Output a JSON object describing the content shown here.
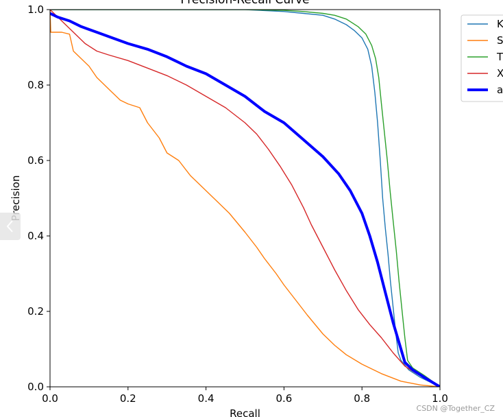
{
  "chart_data": {
    "type": "line",
    "title": "Precision-Recall Curve",
    "xlabel": "Recall",
    "ylabel": "Precision",
    "xlim": [
      0.0,
      1.0
    ],
    "ylim": [
      0.0,
      1.0
    ],
    "x_ticks": [
      "0.0",
      "0.2",
      "0.4",
      "0.6",
      "0.8",
      "1.0"
    ],
    "y_ticks": [
      "0.0",
      "0.2",
      "0.4",
      "0.6",
      "0.8",
      "1.0"
    ],
    "grid": false,
    "legend_position": "outside-top-right",
    "series": [
      {
        "name": "K",
        "color": "#1f77b4",
        "width": 1.4,
        "points": [
          [
            0.0,
            1.0
          ],
          [
            0.1,
            1.0
          ],
          [
            0.2,
            1.0
          ],
          [
            0.3,
            1.0
          ],
          [
            0.4,
            1.0
          ],
          [
            0.5,
            1.0
          ],
          [
            0.6,
            0.995
          ],
          [
            0.65,
            0.99
          ],
          [
            0.7,
            0.985
          ],
          [
            0.73,
            0.975
          ],
          [
            0.76,
            0.96
          ],
          [
            0.78,
            0.945
          ],
          [
            0.8,
            0.925
          ],
          [
            0.815,
            0.895
          ],
          [
            0.825,
            0.85
          ],
          [
            0.833,
            0.78
          ],
          [
            0.84,
            0.7
          ],
          [
            0.847,
            0.6
          ],
          [
            0.853,
            0.5
          ],
          [
            0.86,
            0.42
          ],
          [
            0.867,
            0.35
          ],
          [
            0.873,
            0.28
          ],
          [
            0.88,
            0.21
          ],
          [
            0.887,
            0.14
          ],
          [
            0.893,
            0.09
          ],
          [
            0.9,
            0.07
          ],
          [
            0.92,
            0.045
          ],
          [
            0.95,
            0.025
          ],
          [
            1.0,
            0.0
          ]
        ]
      },
      {
        "name": "S",
        "color": "#ff7f0e",
        "width": 1.4,
        "points": [
          [
            0.0,
            1.0
          ],
          [
            0.002,
            0.94
          ],
          [
            0.03,
            0.94
          ],
          [
            0.05,
            0.935
          ],
          [
            0.06,
            0.89
          ],
          [
            0.08,
            0.87
          ],
          [
            0.1,
            0.85
          ],
          [
            0.12,
            0.82
          ],
          [
            0.15,
            0.79
          ],
          [
            0.18,
            0.76
          ],
          [
            0.2,
            0.75
          ],
          [
            0.23,
            0.74
          ],
          [
            0.25,
            0.7
          ],
          [
            0.28,
            0.66
          ],
          [
            0.3,
            0.62
          ],
          [
            0.33,
            0.6
          ],
          [
            0.36,
            0.56
          ],
          [
            0.4,
            0.52
          ],
          [
            0.43,
            0.49
          ],
          [
            0.46,
            0.46
          ],
          [
            0.5,
            0.41
          ],
          [
            0.53,
            0.37
          ],
          [
            0.55,
            0.34
          ],
          [
            0.58,
            0.3
          ],
          [
            0.6,
            0.27
          ],
          [
            0.63,
            0.23
          ],
          [
            0.66,
            0.19
          ],
          [
            0.7,
            0.14
          ],
          [
            0.73,
            0.11
          ],
          [
            0.76,
            0.085
          ],
          [
            0.8,
            0.06
          ],
          [
            0.85,
            0.035
          ],
          [
            0.9,
            0.015
          ],
          [
            0.95,
            0.005
          ],
          [
            1.0,
            0.0
          ]
        ]
      },
      {
        "name": "T",
        "color": "#2ca02c",
        "width": 1.4,
        "points": [
          [
            0.0,
            1.0
          ],
          [
            0.1,
            1.0
          ],
          [
            0.2,
            1.0
          ],
          [
            0.3,
            1.0
          ],
          [
            0.4,
            1.0
          ],
          [
            0.5,
            1.0
          ],
          [
            0.6,
            0.998
          ],
          [
            0.65,
            0.995
          ],
          [
            0.7,
            0.99
          ],
          [
            0.73,
            0.985
          ],
          [
            0.76,
            0.975
          ],
          [
            0.79,
            0.955
          ],
          [
            0.81,
            0.935
          ],
          [
            0.825,
            0.905
          ],
          [
            0.835,
            0.87
          ],
          [
            0.843,
            0.82
          ],
          [
            0.85,
            0.75
          ],
          [
            0.857,
            0.68
          ],
          [
            0.865,
            0.6
          ],
          [
            0.872,
            0.52
          ],
          [
            0.88,
            0.44
          ],
          [
            0.888,
            0.36
          ],
          [
            0.895,
            0.28
          ],
          [
            0.903,
            0.2
          ],
          [
            0.91,
            0.13
          ],
          [
            0.917,
            0.07
          ],
          [
            0.93,
            0.05
          ],
          [
            0.96,
            0.03
          ],
          [
            1.0,
            0.0
          ]
        ]
      },
      {
        "name": "X",
        "color": "#d62728",
        "width": 1.4,
        "points": [
          [
            0.0,
            1.0
          ],
          [
            0.03,
            0.97
          ],
          [
            0.06,
            0.94
          ],
          [
            0.09,
            0.91
          ],
          [
            0.12,
            0.89
          ],
          [
            0.15,
            0.88
          ],
          [
            0.2,
            0.865
          ],
          [
            0.25,
            0.845
          ],
          [
            0.3,
            0.825
          ],
          [
            0.35,
            0.8
          ],
          [
            0.4,
            0.77
          ],
          [
            0.45,
            0.74
          ],
          [
            0.5,
            0.7
          ],
          [
            0.53,
            0.67
          ],
          [
            0.56,
            0.63
          ],
          [
            0.59,
            0.585
          ],
          [
            0.62,
            0.535
          ],
          [
            0.65,
            0.475
          ],
          [
            0.67,
            0.43
          ],
          [
            0.7,
            0.37
          ],
          [
            0.73,
            0.31
          ],
          [
            0.76,
            0.255
          ],
          [
            0.79,
            0.205
          ],
          [
            0.82,
            0.165
          ],
          [
            0.85,
            0.13
          ],
          [
            0.88,
            0.09
          ],
          [
            0.91,
            0.055
          ],
          [
            0.94,
            0.035
          ],
          [
            0.97,
            0.018
          ],
          [
            1.0,
            0.0
          ]
        ]
      },
      {
        "name": "a",
        "color": "#0000ff",
        "width": 4,
        "points": [
          [
            0.0,
            0.99
          ],
          [
            0.02,
            0.98
          ],
          [
            0.05,
            0.97
          ],
          [
            0.08,
            0.955
          ],
          [
            0.12,
            0.94
          ],
          [
            0.16,
            0.925
          ],
          [
            0.2,
            0.91
          ],
          [
            0.25,
            0.895
          ],
          [
            0.3,
            0.875
          ],
          [
            0.35,
            0.85
          ],
          [
            0.4,
            0.83
          ],
          [
            0.45,
            0.8
          ],
          [
            0.5,
            0.77
          ],
          [
            0.55,
            0.73
          ],
          [
            0.6,
            0.7
          ],
          [
            0.65,
            0.655
          ],
          [
            0.7,
            0.61
          ],
          [
            0.74,
            0.565
          ],
          [
            0.77,
            0.52
          ],
          [
            0.8,
            0.46
          ],
          [
            0.82,
            0.4
          ],
          [
            0.84,
            0.33
          ],
          [
            0.86,
            0.25
          ],
          [
            0.88,
            0.17
          ],
          [
            0.9,
            0.1
          ],
          [
            0.91,
            0.065
          ],
          [
            0.93,
            0.045
          ],
          [
            0.96,
            0.025
          ],
          [
            1.0,
            0.0
          ]
        ]
      }
    ]
  },
  "watermark": "CSDN @Together_CZ"
}
